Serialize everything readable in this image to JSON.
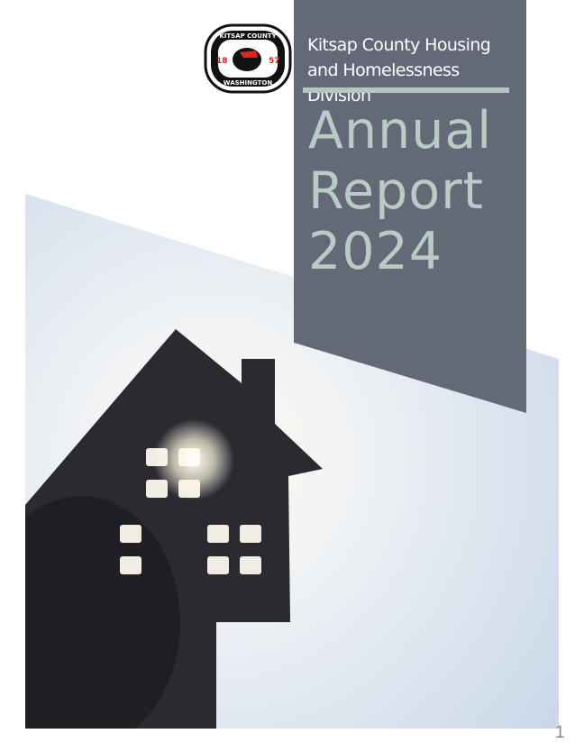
{
  "logo": {
    "top_text": "KITSAP COUNTY",
    "bottom_text": "WASHINGTON",
    "year_left": "18",
    "year_right": "57"
  },
  "header": {
    "subtitle": "Kitsap County Housing and Homelessness Division"
  },
  "title": {
    "line1": "Annual",
    "line2": "Report",
    "line3": "2024"
  },
  "colors": {
    "panel": "#636977",
    "title": "#b8cbc4",
    "rule": "#b3c6bf",
    "sky": "#dfe7f1"
  },
  "page_number": "1"
}
